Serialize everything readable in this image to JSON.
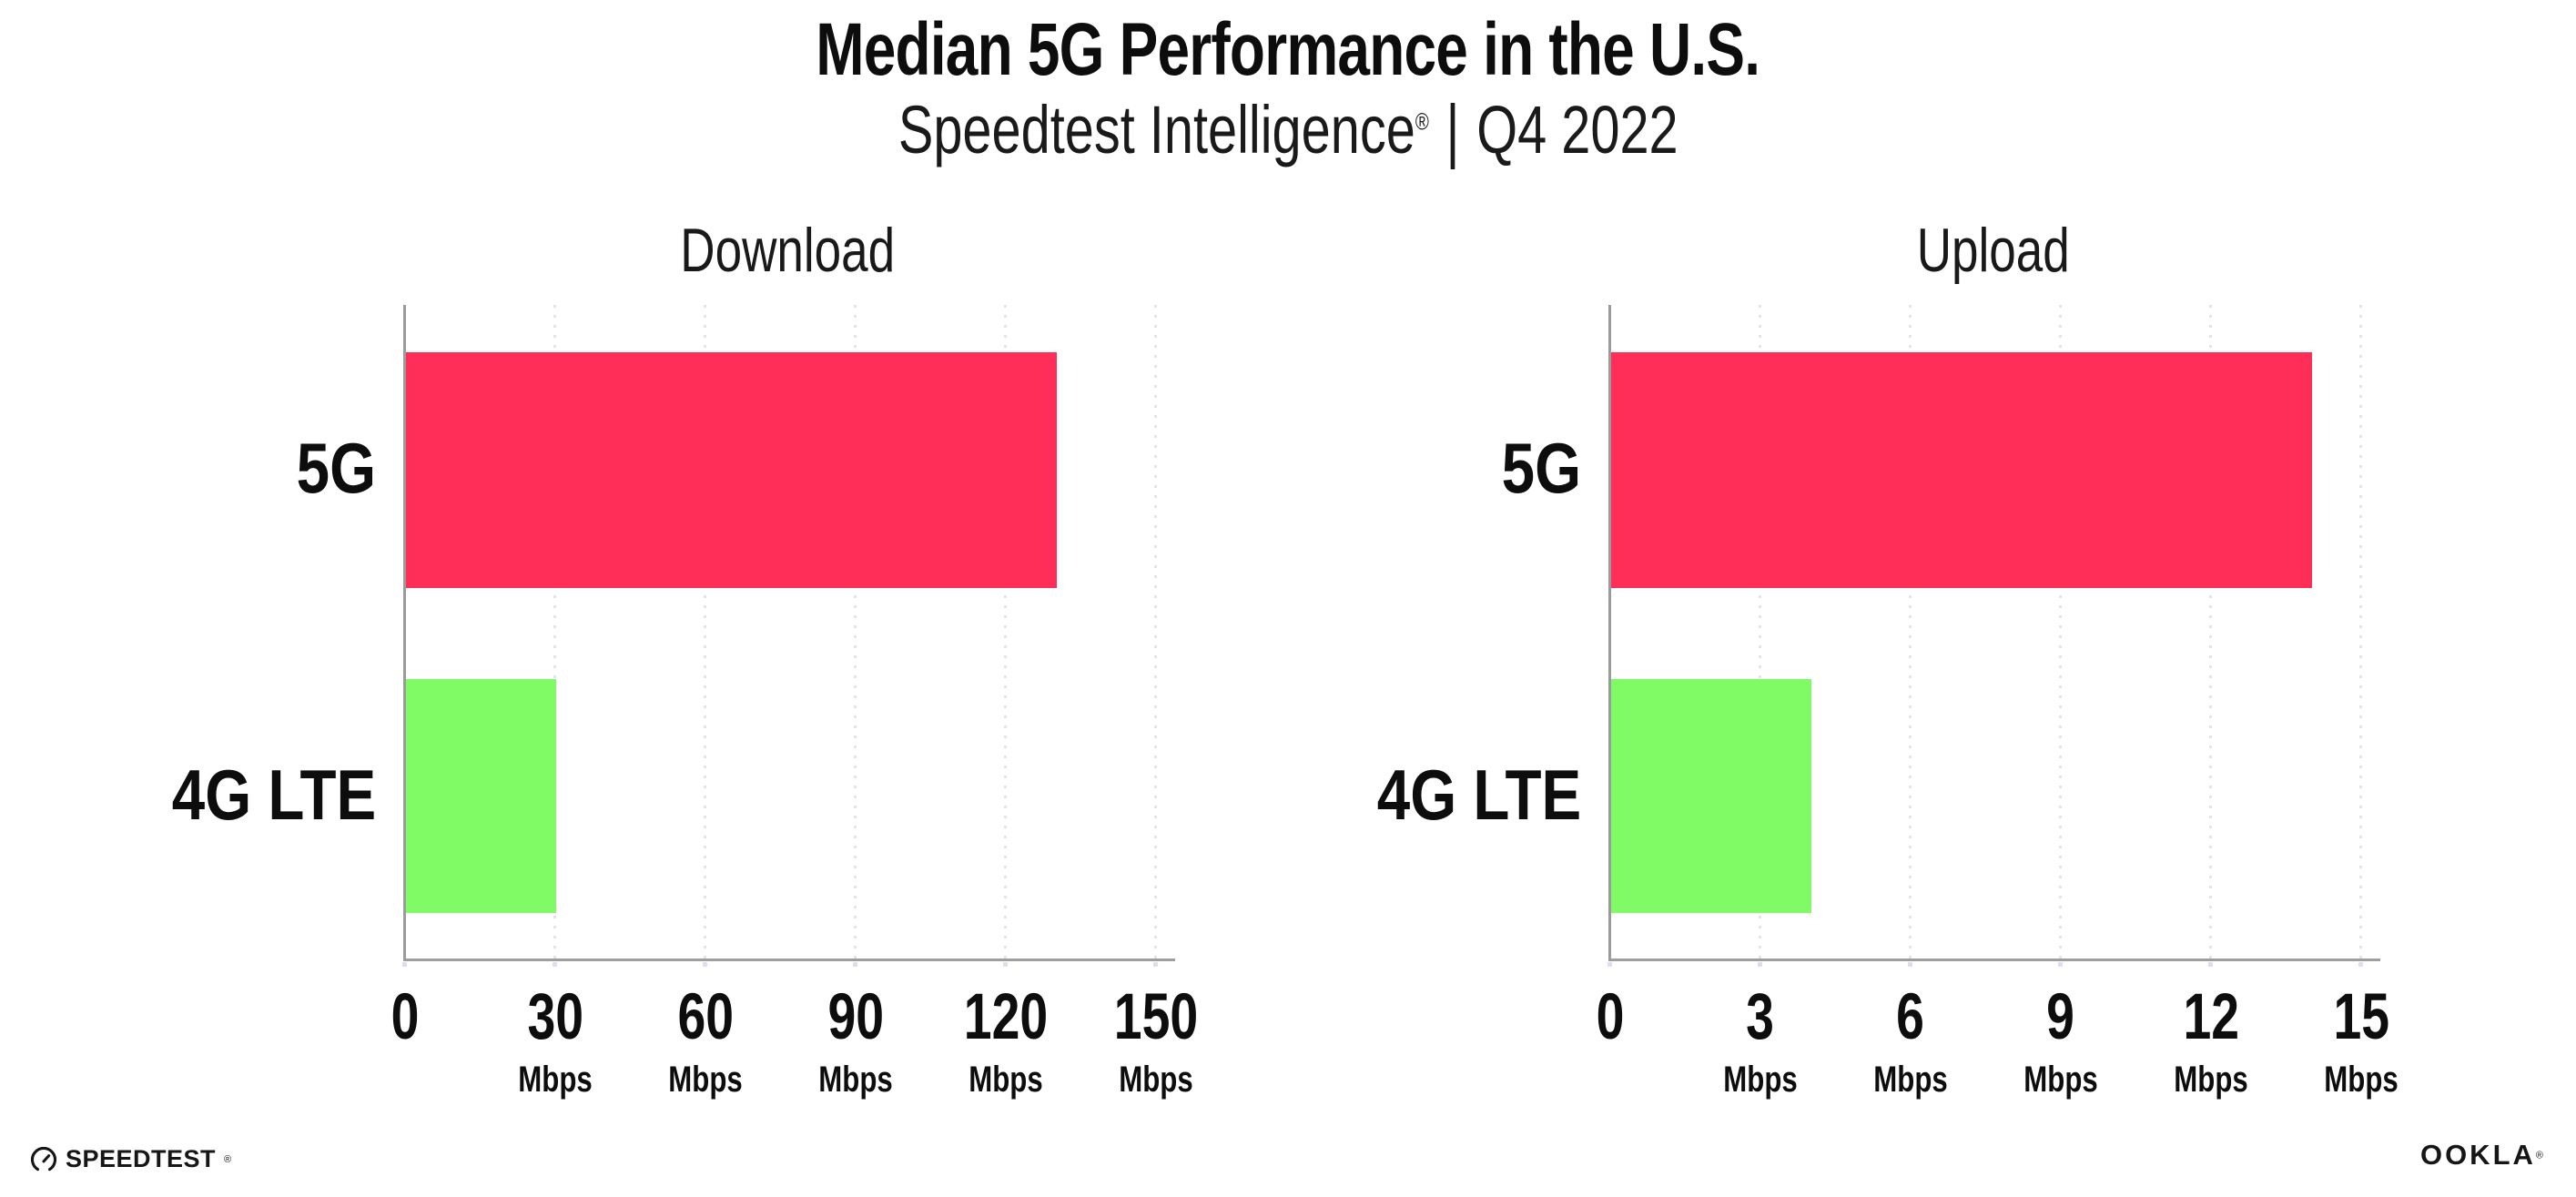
{
  "title": "Median 5G Performance in the U.S.",
  "subtitle": {
    "brand": "Speedtest Intelligence",
    "registered": "®",
    "separator": "|",
    "period": "Q4 2022"
  },
  "colors": {
    "bar_5g": "#ff2e58",
    "bar_4g_lte": "#80fb66",
    "axis": "#9b9b9b",
    "gridline": "#e3e3ed",
    "text": "#0d0d0d"
  },
  "chart_data": [
    {
      "type": "bar",
      "orientation": "horizontal",
      "title": "Download",
      "categories": [
        "5G",
        "4G LTE"
      ],
      "values": [
        130,
        30
      ],
      "unit": "Mbps",
      "xlim": [
        0,
        150
      ],
      "xticks": [
        0,
        30,
        60,
        90,
        120,
        150
      ],
      "grid": "vertical-dotted",
      "legend": "none",
      "bar_colors": [
        "#ff2e58",
        "#80fb66"
      ],
      "ticks": [
        {
          "label": "0",
          "unit": ""
        },
        {
          "label": "30",
          "unit": "Mbps"
        },
        {
          "label": "60",
          "unit": "Mbps"
        },
        {
          "label": "90",
          "unit": "Mbps"
        },
        {
          "label": "120",
          "unit": "Mbps"
        },
        {
          "label": "150",
          "unit": "Mbps"
        }
      ]
    },
    {
      "type": "bar",
      "orientation": "horizontal",
      "title": "Upload",
      "categories": [
        "5G",
        "4G LTE"
      ],
      "values": [
        14,
        4
      ],
      "unit": "Mbps",
      "xlim": [
        0,
        15
      ],
      "xticks": [
        0,
        3,
        6,
        9,
        12,
        15
      ],
      "grid": "vertical-dotted",
      "legend": "none",
      "bar_colors": [
        "#ff2e58",
        "#80fb66"
      ],
      "ticks": [
        {
          "label": "0",
          "unit": ""
        },
        {
          "label": "3",
          "unit": "Mbps"
        },
        {
          "label": "6",
          "unit": "Mbps"
        },
        {
          "label": "9",
          "unit": "Mbps"
        },
        {
          "label": "12",
          "unit": "Mbps"
        },
        {
          "label": "15",
          "unit": "Mbps"
        }
      ]
    }
  ],
  "footer": {
    "speedtest_logo_text": "SPEEDTEST",
    "speedtest_registered": "®",
    "ookla_logo_text": "OOKLA",
    "ookla_registered": "®"
  }
}
